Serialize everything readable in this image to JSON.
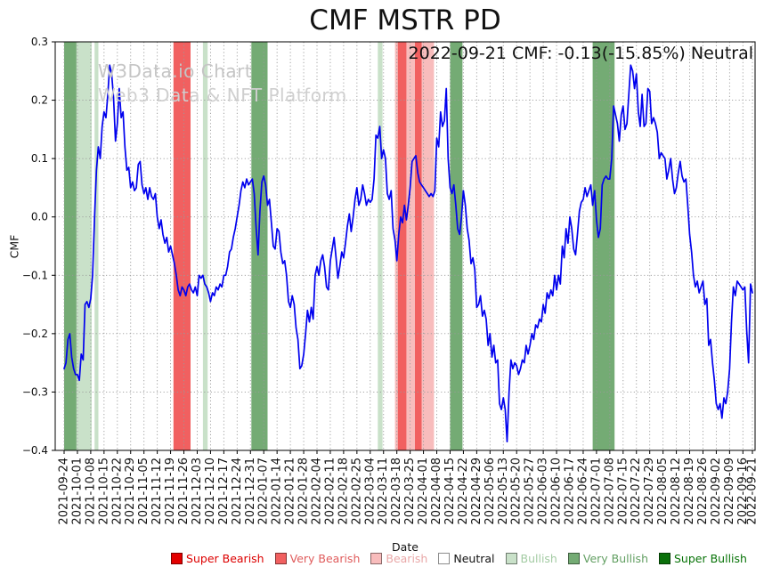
{
  "title": "CMF MSTR PD",
  "annotation": "2022-09-21 CMF: -0.13(-15.85%) Neutral",
  "watermark": {
    "line1": "W3Data.io Chart",
    "line2": "Web3 Data & NFT Platform"
  },
  "chart_data": {
    "type": "line",
    "title": "CMF MSTR PD",
    "xlabel": "Date",
    "ylabel": "CMF",
    "ylim": [
      -0.4,
      0.3
    ],
    "grid": true,
    "line_color": "#0000ee",
    "x_start_date": "2021-09-24",
    "x_end_date": "2022-09-21",
    "x_total_days": 362,
    "x_tick_days": [
      0,
      7,
      14,
      21,
      28,
      35,
      42,
      49,
      56,
      63,
      70,
      77,
      84,
      91,
      98,
      105,
      112,
      119,
      126,
      133,
      140,
      147,
      154,
      161,
      168,
      175,
      182,
      189,
      196,
      203,
      210,
      217,
      224,
      231,
      238,
      245,
      252,
      259,
      266,
      273,
      280,
      287,
      294,
      301,
      308,
      315,
      322,
      329,
      336,
      343,
      350,
      357,
      362
    ],
    "x_tick_labels": [
      "2021-09-24",
      "2021-10-01",
      "2021-10-08",
      "2021-10-15",
      "2021-10-22",
      "2021-10-29",
      "2021-11-05",
      "2021-11-12",
      "2021-11-19",
      "2021-11-26",
      "2021-12-03",
      "2021-12-10",
      "2021-12-17",
      "2021-12-24",
      "2021-12-31",
      "2022-01-07",
      "2022-01-14",
      "2022-01-21",
      "2022-01-28",
      "2022-02-04",
      "2022-02-11",
      "2022-02-18",
      "2022-02-25",
      "2022-03-04",
      "2022-03-11",
      "2022-03-18",
      "2022-03-25",
      "2022-04-01",
      "2022-04-08",
      "2022-04-15",
      "2022-04-22",
      "2022-04-29",
      "2022-05-06",
      "2022-05-13",
      "2022-05-20",
      "2022-05-27",
      "2022-06-03",
      "2022-06-10",
      "2022-06-17",
      "2022-06-24",
      "2022-07-01",
      "2022-07-08",
      "2022-07-15",
      "2022-07-22",
      "2022-07-29",
      "2022-08-05",
      "2022-08-12",
      "2022-08-19",
      "2022-08-26",
      "2022-09-02",
      "2022-09-09",
      "2022-09-16",
      "2022-09-21"
    ],
    "y_tick_values": [
      0.3,
      0.2,
      0.1,
      0.0,
      -0.1,
      -0.2,
      -0.3,
      -0.4
    ],
    "y_tick_labels": [
      "0.3",
      "0.2",
      "0.1",
      "0.0",
      "−0.1",
      "−0.2",
      "−0.3",
      "−0.4"
    ],
    "series": [
      {
        "name": "CMF",
        "start_day": 0,
        "step_days": 1,
        "values": [
          -0.26,
          -0.25,
          -0.21,
          -0.2,
          -0.24,
          -0.26,
          -0.27,
          -0.27,
          -0.28,
          -0.235,
          -0.245,
          -0.15,
          -0.145,
          -0.155,
          -0.14,
          -0.1,
          0,
          0.08,
          0.12,
          0.1,
          0.155,
          0.18,
          0.17,
          0.21,
          0.26,
          0.245,
          0.205,
          0.13,
          0.16,
          0.22,
          0.17,
          0.18,
          0.12,
          0.08,
          0.085,
          0.05,
          0.06,
          0.045,
          0.05,
          0.09,
          0.095,
          0.055,
          0.04,
          0.05,
          0.03,
          0.05,
          0.035,
          0.03,
          0.04,
          0,
          -0.02,
          -0.005,
          -0.03,
          -0.045,
          -0.035,
          -0.06,
          -0.05,
          -0.065,
          -0.08,
          -0.1,
          -0.125,
          -0.135,
          -0.12,
          -0.125,
          -0.135,
          -0.12,
          -0.115,
          -0.125,
          -0.13,
          -0.12,
          -0.135,
          -0.1,
          -0.105,
          -0.1,
          -0.115,
          -0.12,
          -0.13,
          -0.145,
          -0.13,
          -0.135,
          -0.12,
          -0.125,
          -0.115,
          -0.12,
          -0.1,
          -0.1,
          -0.085,
          -0.06,
          -0.055,
          -0.035,
          -0.02,
          0,
          0.02,
          0.045,
          0.06,
          0.05,
          0.065,
          0.055,
          0.06,
          0.065,
          0.04,
          -0.02,
          -0.065,
          0.01,
          0.06,
          0.07,
          0.055,
          0.02,
          0.03,
          -0.01,
          -0.05,
          -0.055,
          -0.02,
          -0.025,
          -0.06,
          -0.08,
          -0.075,
          -0.1,
          -0.145,
          -0.155,
          -0.135,
          -0.15,
          -0.19,
          -0.21,
          -0.26,
          -0.255,
          -0.235,
          -0.2,
          -0.16,
          -0.18,
          -0.155,
          -0.175,
          -0.1,
          -0.085,
          -0.1,
          -0.075,
          -0.065,
          -0.085,
          -0.12,
          -0.125,
          -0.075,
          -0.055,
          -0.035,
          -0.07,
          -0.105,
          -0.085,
          -0.06,
          -0.07,
          -0.045,
          -0.015,
          0.005,
          -0.025,
          0,
          0.03,
          0.05,
          0.02,
          0.03,
          0.055,
          0.04,
          0.02,
          0.03,
          0.025,
          0.03,
          0.065,
          0.14,
          0.135,
          0.155,
          0.1,
          0.115,
          0.1,
          0.04,
          0.03,
          0.045,
          -0.02,
          -0.04,
          -0.075,
          -0.03,
          0,
          -0.01,
          0.02,
          -0.005,
          0.02,
          0.05,
          0.095,
          0.1,
          0.105,
          0.075,
          0.06,
          0.055,
          0.05,
          0.045,
          0.04,
          0.035,
          0.04,
          0.035,
          0.045,
          0.135,
          0.12,
          0.18,
          0.155,
          0.165,
          0.22,
          0.1,
          0.05,
          0.04,
          0.055,
          0.02,
          -0.02,
          -0.03,
          0,
          0.045,
          0.02,
          -0.02,
          -0.04,
          -0.08,
          -0.07,
          -0.09,
          -0.155,
          -0.15,
          -0.135,
          -0.17,
          -0.16,
          -0.175,
          -0.22,
          -0.2,
          -0.24,
          -0.22,
          -0.25,
          -0.245,
          -0.32,
          -0.33,
          -0.31,
          -0.33,
          -0.385,
          -0.3,
          -0.245,
          -0.26,
          -0.25,
          -0.255,
          -0.27,
          -0.26,
          -0.245,
          -0.25,
          -0.22,
          -0.235,
          -0.22,
          -0.2,
          -0.21,
          -0.185,
          -0.19,
          -0.175,
          -0.18,
          -0.15,
          -0.165,
          -0.13,
          -0.14,
          -0.125,
          -0.135,
          -0.1,
          -0.125,
          -0.1,
          -0.115,
          -0.05,
          -0.07,
          -0.02,
          -0.045,
          0,
          -0.02,
          -0.055,
          -0.065,
          -0.03,
          0.01,
          0.025,
          0.03,
          0.05,
          0.035,
          0.045,
          0.055,
          0.02,
          0.045,
          -0.005,
          -0.035,
          -0.02,
          0.055,
          0.065,
          0.07,
          0.065,
          0.065,
          0.1,
          0.19,
          0.175,
          0.16,
          0.13,
          0.175,
          0.19,
          0.15,
          0.16,
          0.21,
          0.26,
          0.25,
          0.22,
          0.245,
          0.18,
          0.155,
          0.21,
          0.155,
          0.16,
          0.22,
          0.215,
          0.16,
          0.17,
          0.16,
          0.145,
          0.1,
          0.11,
          0.105,
          0.1,
          0.065,
          0.08,
          0.1,
          0.065,
          0.04,
          0.05,
          0.075,
          0.095,
          0.07,
          0.06,
          0.065,
          0.02,
          -0.03,
          -0.06,
          -0.1,
          -0.12,
          -0.11,
          -0.13,
          -0.12,
          -0.11,
          -0.15,
          -0.14,
          -0.22,
          -0.21,
          -0.25,
          -0.28,
          -0.32,
          -0.33,
          -0.32,
          -0.345,
          -0.31,
          -0.32,
          -0.3,
          -0.26,
          -0.18,
          -0.12,
          -0.135,
          -0.11,
          -0.115,
          -0.12,
          -0.125,
          -0.12,
          -0.195,
          -0.25,
          -0.115,
          -0.13
        ]
      }
    ],
    "bands": [
      {
        "from_day": 0,
        "to_day": 6.5,
        "level": "very_bullish"
      },
      {
        "from_day": 6.5,
        "to_day": 14.5,
        "level": "bullish"
      },
      {
        "from_day": 16,
        "to_day": 18,
        "level": "bullish"
      },
      {
        "from_day": 57.5,
        "to_day": 66.5,
        "level": "very_bearish"
      },
      {
        "from_day": 73,
        "to_day": 75.5,
        "level": "bullish"
      },
      {
        "from_day": 98.5,
        "to_day": 107,
        "level": "very_bullish"
      },
      {
        "from_day": 165,
        "to_day": 167.5,
        "level": "bullish"
      },
      {
        "from_day": 174,
        "to_day": 194.5,
        "level": "bearish"
      },
      {
        "from_day": 175.5,
        "to_day": 180,
        "level": "very_bearish"
      },
      {
        "from_day": 184.5,
        "to_day": 188,
        "level": "very_bearish"
      },
      {
        "from_day": 203,
        "to_day": 209.5,
        "level": "very_bullish"
      },
      {
        "from_day": 278,
        "to_day": 289.5,
        "level": "very_bullish"
      }
    ],
    "palette": {
      "super_bearish": "#e30000",
      "very_bearish": "#f16060",
      "bearish": "#f8bcbc",
      "neutral": "#ffffff",
      "bullish": "#c9e1c9",
      "very_bullish": "#74ab74",
      "super_bullish": "#0a700a"
    },
    "legend_text_colors": {
      "super_bearish": "#dd0000",
      "very_bearish": "#e05c5c",
      "bearish": "#e9a8a8",
      "neutral": "#111111",
      "bullish": "#a3cba3",
      "very_bullish": "#629f62",
      "super_bullish": "#077307"
    },
    "legend": [
      {
        "label": "Super Bearish",
        "level": "super_bearish"
      },
      {
        "label": "Very Bearish",
        "level": "very_bearish"
      },
      {
        "label": "Bearish",
        "level": "bearish"
      },
      {
        "label": "Neutral",
        "level": "neutral"
      },
      {
        "label": "Bullish",
        "level": "bullish"
      },
      {
        "label": "Very Bullish",
        "level": "very_bullish"
      },
      {
        "label": "Super Bullish",
        "level": "super_bullish"
      }
    ]
  }
}
